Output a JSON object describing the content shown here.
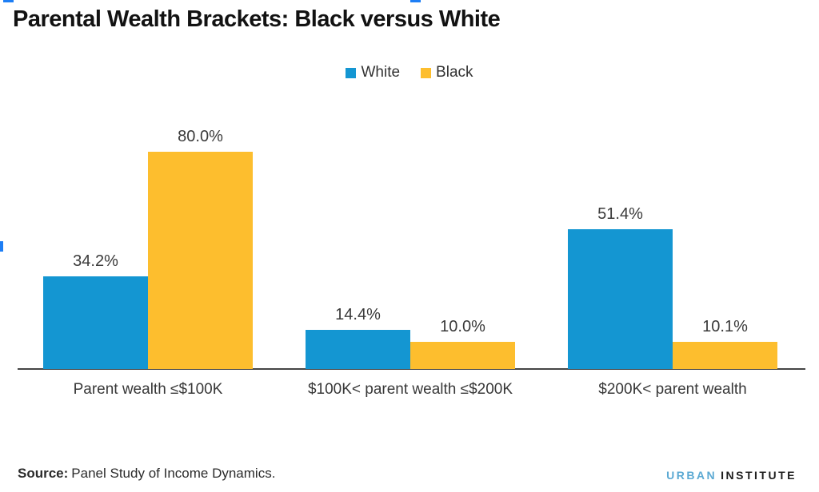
{
  "title": "Parental Wealth Brackets: Black versus White",
  "chart_data": {
    "type": "bar",
    "title": "Parental Wealth Brackets: Black versus White",
    "categories": [
      "Parent wealth ≤$100K",
      "$100K< parent wealth ≤$200K",
      "$200K< parent wealth"
    ],
    "series": [
      {
        "name": "White",
        "color": "#1496d2",
        "values": [
          34.2,
          14.4,
          51.4
        ],
        "labels": [
          "34.2%",
          "14.4%",
          "51.4%"
        ]
      },
      {
        "name": "Black",
        "color": "#fdbe2e",
        "values": [
          80.0,
          10.0,
          10.1
        ],
        "labels": [
          "80.0%",
          "10.0%",
          "10.1%"
        ]
      }
    ],
    "ylim": [
      0,
      100
    ],
    "y_axis_visible": false,
    "grid": false,
    "legend_position": "top",
    "value_label_format": "0.0%"
  },
  "source": {
    "label": "Source:",
    "text": "Panel Study of Income Dynamics."
  },
  "logo": {
    "word1": "URBAN",
    "word2": "INSTITUTE",
    "word1_color": "#5ba9d3",
    "word2_color": "#1e1e1e"
  },
  "colors": {
    "axis": "#454545",
    "selection_handle": "#1d7ef5"
  }
}
